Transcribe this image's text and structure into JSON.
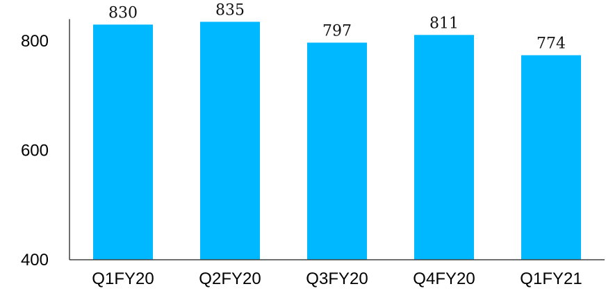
{
  "chart_data": {
    "type": "bar",
    "title": "",
    "xlabel": "",
    "ylabel": "",
    "categories": [
      "Q1FY20",
      "Q2FY20",
      "Q3FY20",
      "Q4FY20",
      "Q1FY21"
    ],
    "values": [
      830,
      835,
      797,
      811,
      774
    ],
    "data_labels": [
      "830",
      "835",
      "797",
      "811",
      "774"
    ],
    "ylim": [
      400,
      840
    ],
    "yticks": [
      400,
      600,
      800
    ],
    "ytick_labels": [
      "400",
      "600",
      "800"
    ],
    "grid": false,
    "legend": "none",
    "bar_color": "#00B8FF",
    "axis_color": "#404040"
  }
}
